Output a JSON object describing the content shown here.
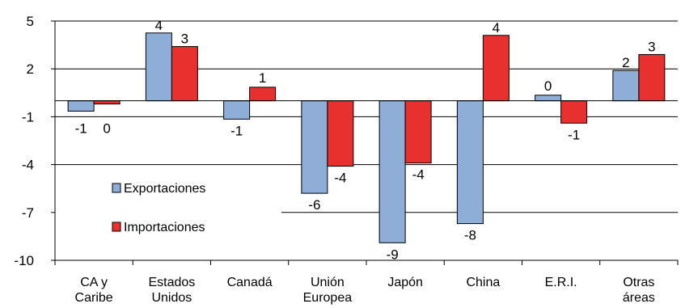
{
  "chart_data": {
    "type": "bar",
    "title": "",
    "xlabel": "",
    "ylabel": "",
    "ylim": [
      -10,
      5
    ],
    "yticks": [
      5,
      2,
      -1,
      -4,
      -7,
      -10
    ],
    "grid": "horizontal",
    "categories": [
      [
        "CA y",
        "Caribe"
      ],
      [
        "Estados",
        "Unidos"
      ],
      [
        "Canadá"
      ],
      [
        "Unión",
        "Europea"
      ],
      [
        "Japón"
      ],
      [
        "China"
      ],
      [
        "E.R.I."
      ],
      [
        "Otras",
        "áreas"
      ]
    ],
    "series": [
      {
        "name": "Exportaciones",
        "color": "#8EAED8",
        "values": [
          -0.65,
          4.25,
          -1.15,
          -5.8,
          -8.9,
          -7.7,
          0.35,
          1.9
        ],
        "labels": [
          "-1",
          "4",
          "-1",
          "-6",
          "-9",
          "-8",
          "0",
          "2"
        ]
      },
      {
        "name": "Importaciones",
        "color": "#E8312E",
        "values": [
          -0.2,
          3.4,
          0.85,
          -4.1,
          -3.9,
          4.1,
          -1.4,
          2.9
        ],
        "labels": [
          "0",
          "3",
          "1",
          "-4",
          "-4",
          "4",
          "-1",
          "3"
        ]
      }
    ],
    "legend": {
      "position": "inside-lower-left",
      "items": [
        "Exportaciones",
        "Importaciones"
      ]
    }
  }
}
